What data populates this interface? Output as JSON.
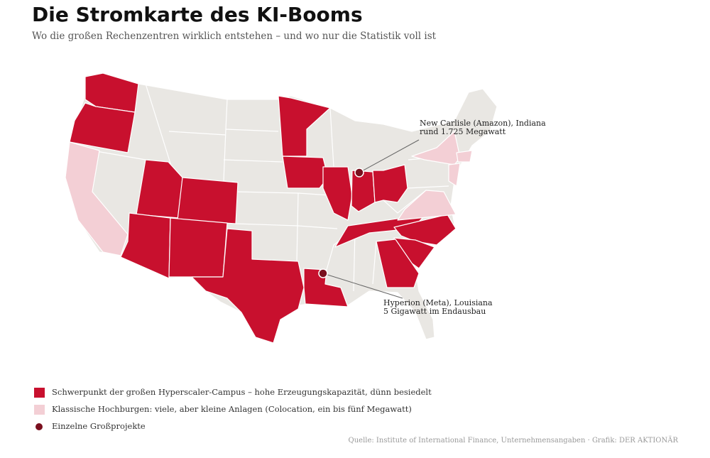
{
  "title": "Die Stromkarte des KI-Booms",
  "subtitle": "Wo die großen Rechenzentren wirklich entstehen – und wo nur die Statistik voll ist",
  "annotations": [
    {
      "lines": [
        "New Carlisle (Amazon), Indiana",
        "rund 1.725 Megawatt"
      ]
    },
    {
      "lines": [
        "Hyperion (Meta), Louisiana",
        "5 Gigawatt im Endausbau"
      ]
    }
  ],
  "legend": [
    {
      "label": "Schwerpunkt der großen Hyperscaler-Campus – hohe Erzeugungskapazität, dünn besiedelt",
      "color": "#c8102e"
    },
    {
      "label": "Klassische Hochburgen: viele, aber kleine Anlagen (Colocation, ein bis fünf Megawatt)",
      "color": "#f3cfd5"
    },
    {
      "label": "Einzelne Großprojekte",
      "color": "#7a0f1e"
    }
  ],
  "source": "Quelle: Institute of International Finance, Unternehmensangaben · Grafik: DER AKTIONÄR"
}
